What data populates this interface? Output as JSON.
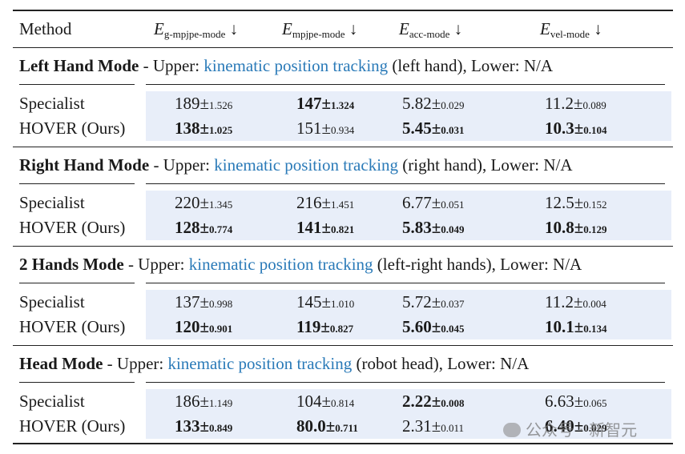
{
  "header": {
    "method": "Method",
    "cols": [
      {
        "sym": "E",
        "sub": "g-mpjpe-mode",
        "arrow": "↓"
      },
      {
        "sym": "E",
        "sub": "mpjpe-mode",
        "arrow": "↓"
      },
      {
        "sym": "E",
        "sub": "acc-mode",
        "arrow": "↓"
      },
      {
        "sym": "E",
        "sub": "vel-mode",
        "arrow": "↓"
      }
    ]
  },
  "sections": [
    {
      "name": "Left Hand Mode",
      "pre": " - Upper: ",
      "link": "kinematic position tracking",
      "post": " (left hand), Lower: N/A",
      "rows": [
        {
          "label": "Specialist",
          "cells": [
            {
              "v": "189",
              "sd": "1.526",
              "b": false
            },
            {
              "v": "147",
              "sd": "1.324",
              "b": true
            },
            {
              "v": "5.82",
              "sd": "0.029",
              "b": false
            },
            {
              "v": "11.2",
              "sd": "0.089",
              "b": false
            }
          ]
        },
        {
          "label": "HOVER (Ours)",
          "cells": [
            {
              "v": "138",
              "sd": "1.025",
              "b": true
            },
            {
              "v": "151",
              "sd": "0.934",
              "b": false
            },
            {
              "v": "5.45",
              "sd": "0.031",
              "b": true
            },
            {
              "v": "10.3",
              "sd": "0.104",
              "b": true
            }
          ]
        }
      ]
    },
    {
      "name": "Right Hand Mode",
      "pre": " - Upper: ",
      "link": "kinematic position tracking",
      "post": " (right hand), Lower: N/A",
      "rows": [
        {
          "label": "Specialist",
          "cells": [
            {
              "v": "220",
              "sd": "1.345",
              "b": false
            },
            {
              "v": "216",
              "sd": "1.451",
              "b": false
            },
            {
              "v": "6.77",
              "sd": "0.051",
              "b": false
            },
            {
              "v": "12.5",
              "sd": "0.152",
              "b": false
            }
          ]
        },
        {
          "label": "HOVER (Ours)",
          "cells": [
            {
              "v": "128",
              "sd": "0.774",
              "b": true
            },
            {
              "v": "141",
              "sd": "0.821",
              "b": true
            },
            {
              "v": "5.83",
              "sd": "0.049",
              "b": true
            },
            {
              "v": "10.8",
              "sd": "0.129",
              "b": true
            }
          ]
        }
      ]
    },
    {
      "name": "2 Hands Mode",
      "pre": " - Upper: ",
      "link": "kinematic position tracking",
      "post": " (left-right hands), Lower: N/A",
      "rows": [
        {
          "label": "Specialist",
          "cells": [
            {
              "v": "137",
              "sd": "0.998",
              "b": false
            },
            {
              "v": "145",
              "sd": "1.010",
              "b": false
            },
            {
              "v": "5.72",
              "sd": "0.037",
              "b": false
            },
            {
              "v": "11.2",
              "sd": "0.004",
              "b": false
            }
          ]
        },
        {
          "label": "HOVER (Ours)",
          "cells": [
            {
              "v": "120",
              "sd": "0.901",
              "b": true
            },
            {
              "v": "119",
              "sd": "0.827",
              "b": true
            },
            {
              "v": "5.60",
              "sd": "0.045",
              "b": true
            },
            {
              "v": "10.1",
              "sd": "0.134",
              "b": true
            }
          ]
        }
      ]
    },
    {
      "name": "Head Mode",
      "pre": " - Upper: ",
      "link": "kinematic position tracking",
      "post": " (robot head), Lower: N/A",
      "rows": [
        {
          "label": "Specialist",
          "cells": [
            {
              "v": "186",
              "sd": "1.149",
              "b": false
            },
            {
              "v": "104",
              "sd": "0.814",
              "b": false
            },
            {
              "v": "2.22",
              "sd": "0.008",
              "b": true
            },
            {
              "v": "6.63",
              "sd": "0.065",
              "b": false
            }
          ]
        },
        {
          "label": "HOVER (Ours)",
          "cells": [
            {
              "v": "133",
              "sd": "0.849",
              "b": true
            },
            {
              "v": "80.0",
              "sd": "0.711",
              "b": true
            },
            {
              "v": "2.31",
              "sd": "0.011",
              "b": false
            },
            {
              "v": "6.40",
              "sd": "0.029",
              "b": true
            }
          ]
        }
      ]
    }
  ],
  "watermark": "公众号 · 新智元"
}
